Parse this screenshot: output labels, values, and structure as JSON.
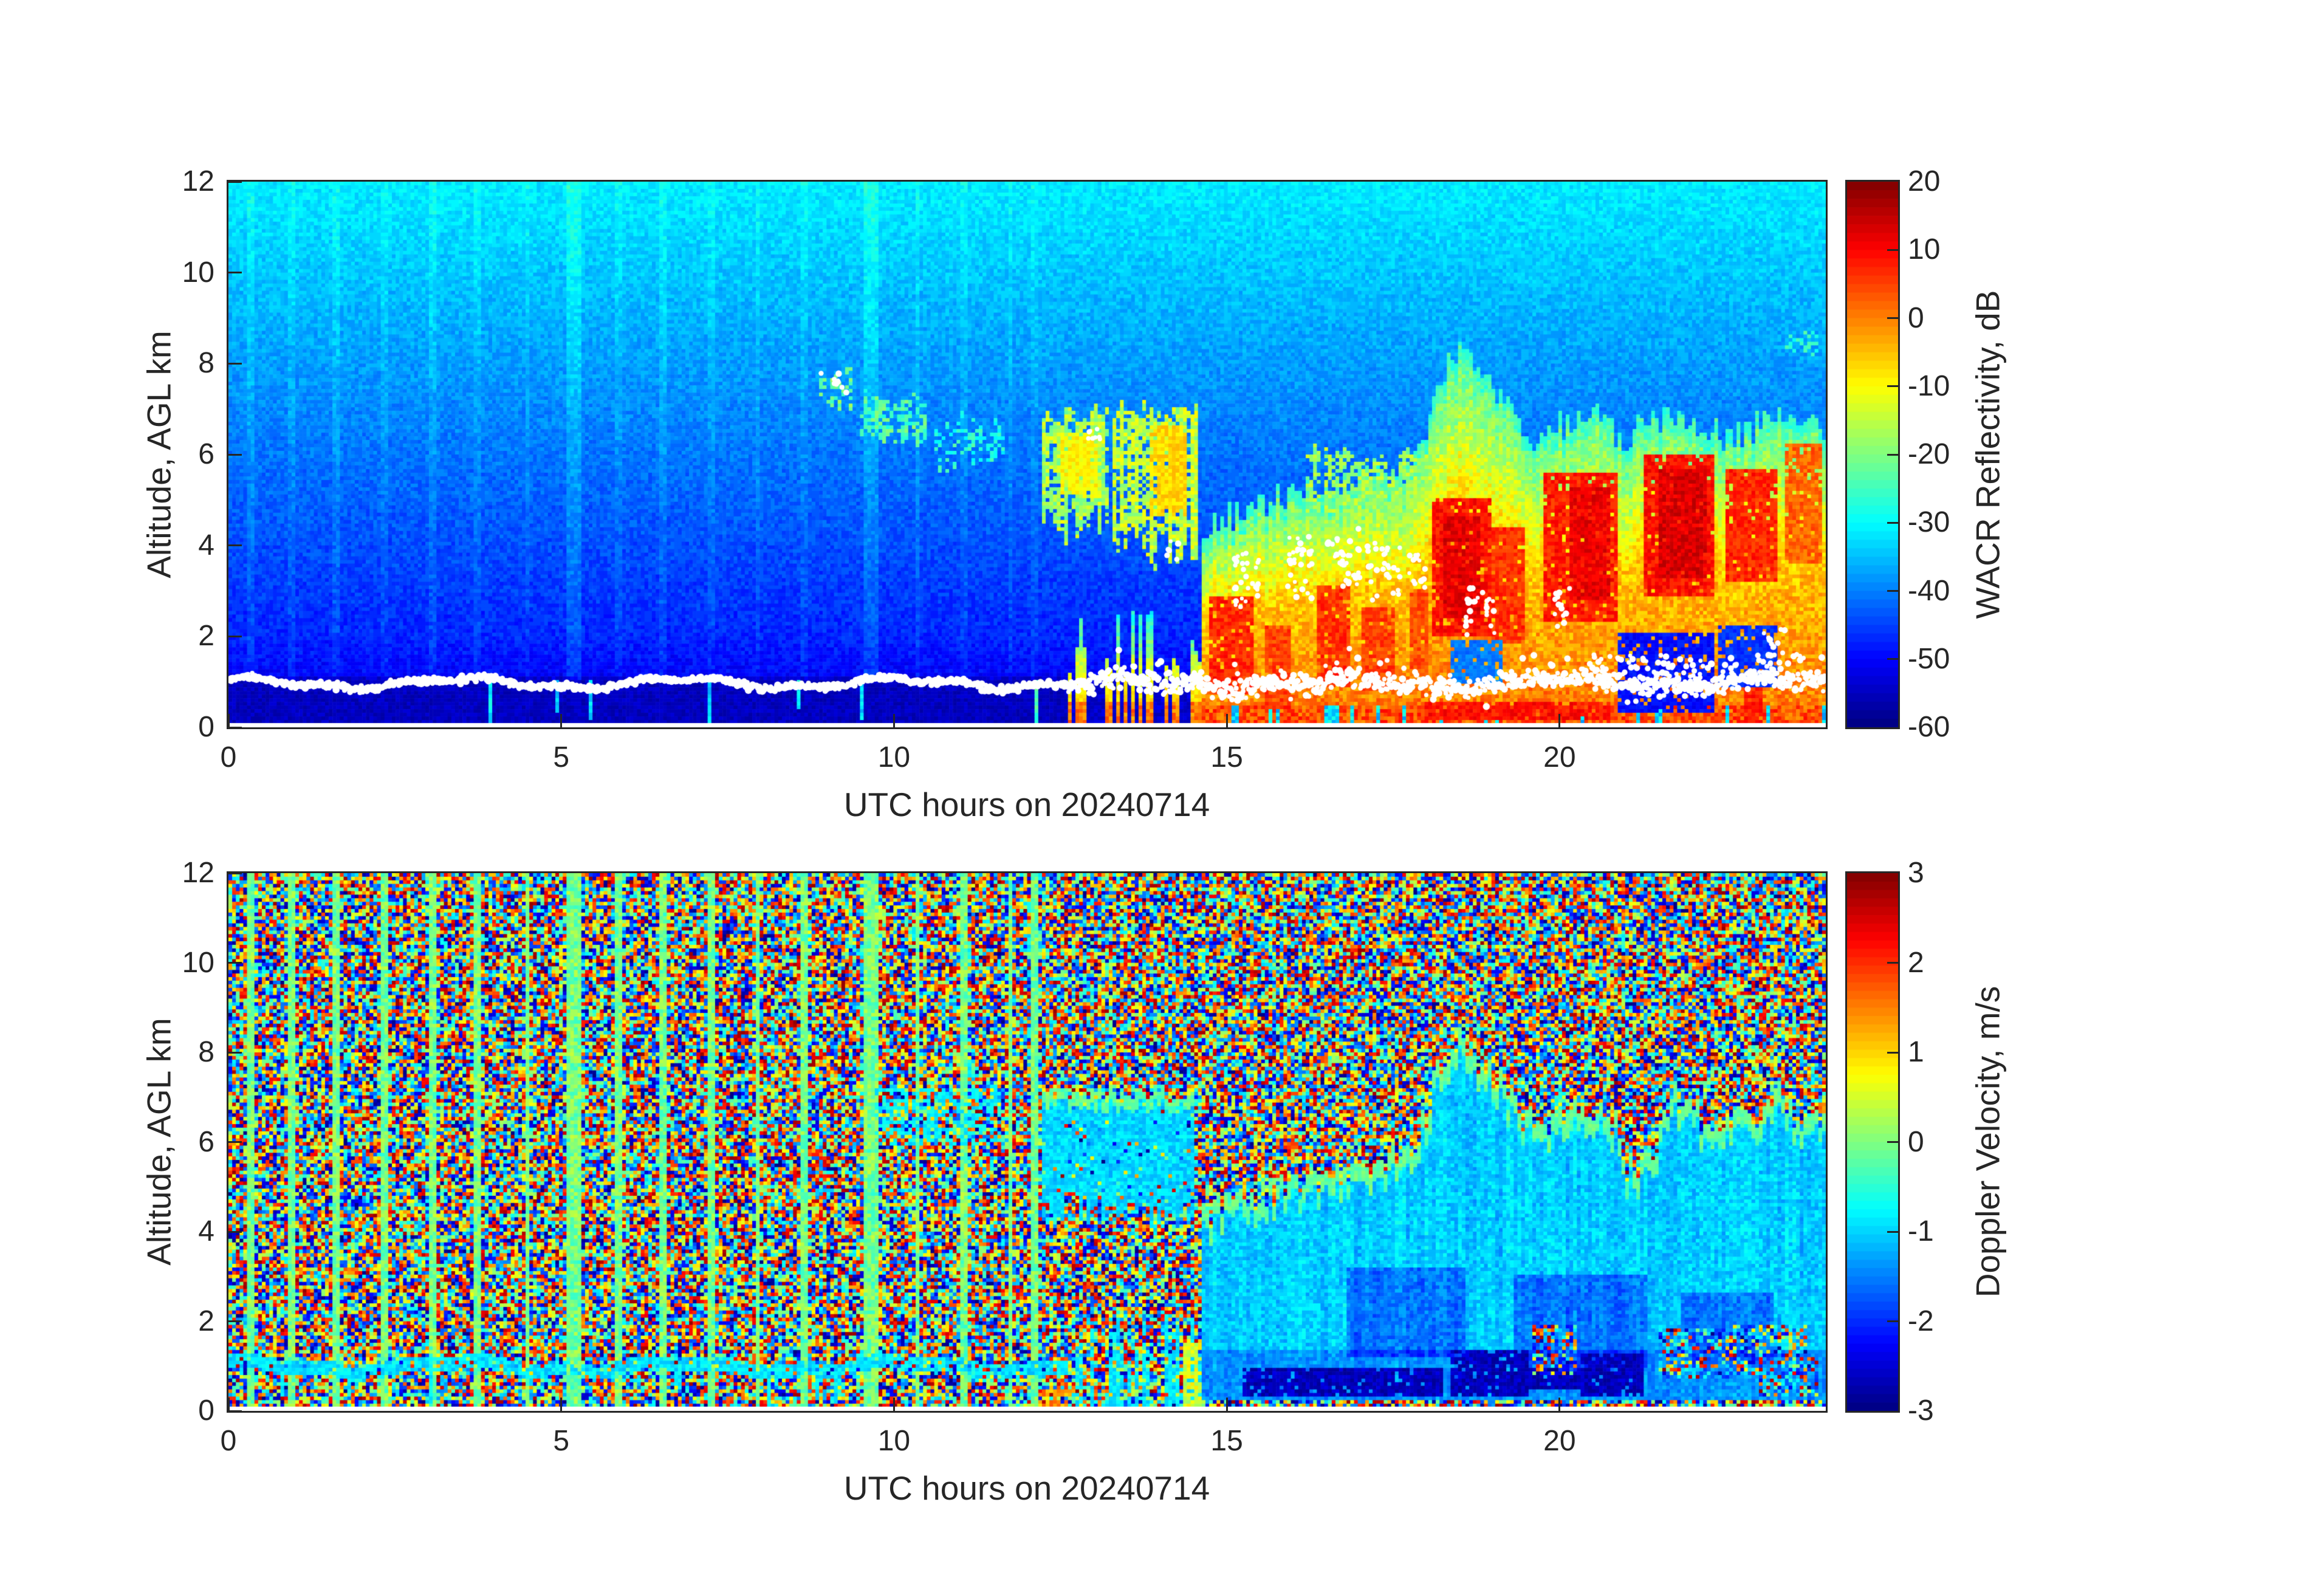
{
  "figure": {
    "background": "#ffffff",
    "frame_color": "#262626",
    "text_color": "#262626"
  },
  "chart_data": [
    {
      "type": "heatmap",
      "panel": "top",
      "description": "W-band ARM Cloud Radar reflectivity time-height plot for 20240714; cyan/blue clear-air noise aloft, white liquid-cloud-base dots near 1 km, cirrus wisps 6.5-8 km from 9-12 UTC, virga 5-7 km from 12.3-14.5 UTC, deep precipitating cloud system with orange/red cores from 14.6-24 UTC reaching up to 8 km",
      "xlabel": "UTC hours on 20240714",
      "ylabel": "Altitude, AGL km",
      "x_range": [
        0,
        24
      ],
      "y_range": [
        0,
        12
      ],
      "x_ticks": [
        0,
        5,
        10,
        15,
        20
      ],
      "y_ticks": [
        0,
        2,
        4,
        6,
        8,
        10,
        12
      ],
      "grid": false,
      "colormap": "jet",
      "colorbar": {
        "label": "WACR Reflectivity, dB",
        "range": [
          -60,
          20
        ],
        "ticks": [
          20,
          10,
          0,
          -10,
          -20,
          -30,
          -40,
          -50,
          -60
        ]
      },
      "background": {
        "noise_top_db": -30.8,
        "lapse_db_per_km": 1.62,
        "low_db": -53.5,
        "sub_band_db": -55,
        "noise_amp_db": 5.2
      },
      "stripes": [
        [
          0.32,
          0.05,
          2.5
        ],
        [
          0.95,
          0.04,
          2
        ],
        [
          1.62,
          0.05,
          2.5
        ],
        [
          2.35,
          0.04,
          2
        ],
        [
          3.05,
          0.05,
          2.5
        ],
        [
          3.75,
          0.04,
          2
        ],
        [
          4.5,
          0.04,
          2
        ],
        [
          5.18,
          0.12,
          4
        ],
        [
          5.85,
          0.04,
          2
        ],
        [
          6.55,
          0.05,
          2.5
        ],
        [
          7.25,
          0.04,
          2
        ],
        [
          7.95,
          0.05,
          2
        ],
        [
          8.65,
          0.04,
          2
        ],
        [
          9.65,
          0.1,
          4
        ],
        [
          10.35,
          0.05,
          2.5
        ],
        [
          11.05,
          0.04,
          2
        ],
        [
          11.75,
          0.04,
          2
        ],
        [
          12.12,
          0.04,
          2
        ]
      ],
      "features": {
        "patches": [
          {
            "t0": 8.85,
            "t1": 9.35,
            "zb": 7.25,
            "zt": 7.95,
            "db": -21,
            "amp": 5,
            "fill": 0.5,
            "topJit": 0.3,
            "botJit": 0.3
          },
          {
            "t0": 9.5,
            "t1": 10.5,
            "zb": 6.55,
            "zt": 7.45,
            "db": -23,
            "amp": 5,
            "fill": 0.55,
            "topJit": 0.4,
            "botJit": 0.4
          },
          {
            "t0": 10.6,
            "t1": 11.65,
            "zb": 6.0,
            "zt": 6.95,
            "db": -27,
            "amp": 4,
            "fill": 0.35,
            "topJit": 0.4,
            "botJit": 0.4
          },
          {
            "t0": 12.25,
            "t1": 13.2,
            "zb": 4.95,
            "zt": 7.1,
            "db": -16,
            "amp": 6,
            "fill": 0.88,
            "topJit": 0.45,
            "botJit": 1.0
          },
          {
            "t0": 12.5,
            "t1": 13.05,
            "zb": 5.2,
            "zt": 6.6,
            "db": -9,
            "amp": 3,
            "fill": 0.95,
            "topJit": 0.2,
            "botJit": 0.3
          },
          {
            "t0": 13.3,
            "t1": 14.55,
            "zb": 4.5,
            "zt": 7.25,
            "db": -14,
            "amp": 6,
            "fill": 0.9,
            "topJit": 0.5,
            "botJit": 1.1
          },
          {
            "t0": 13.85,
            "t1": 14.4,
            "zb": 4.9,
            "zt": 6.7,
            "db": -6,
            "amp": 3,
            "fill": 0.95,
            "topJit": 0.25,
            "botJit": 0.3
          },
          {
            "t0": 16.2,
            "t1": 18.0,
            "zb": 4.9,
            "zt": 6.3,
            "db": -17,
            "amp": 5,
            "fill": 0.5,
            "topJit": 0.6,
            "botJit": 0.2
          },
          {
            "t0": 23.4,
            "t1": 23.95,
            "zb": 8.3,
            "zt": 8.8,
            "db": -26,
            "amp": 3,
            "fill": 0.3,
            "topJit": 0.3,
            "botJit": 0.2
          }
        ],
        "drizzle": {
          "t0": 12.5,
          "t1": 14.65,
          "ztop": 2.6,
          "col_prob": 0.55
        },
        "storm": {
          "t0": 14.6,
          "t1": 24,
          "top_curve": [
            [
              14.6,
              4.3
            ],
            [
              15.3,
              4.8
            ],
            [
              16.2,
              5.2
            ],
            [
              17.0,
              5.4
            ],
            [
              17.7,
              5.7
            ],
            [
              17.95,
              6.4
            ],
            [
              18.2,
              7.8
            ],
            [
              18.5,
              8.25
            ],
            [
              18.9,
              7.6
            ],
            [
              19.3,
              7.0
            ],
            [
              19.6,
              6.4
            ],
            [
              20.0,
              6.6
            ],
            [
              20.5,
              6.9
            ],
            [
              20.9,
              6.4
            ],
            [
              21.3,
              6.6
            ],
            [
              21.7,
              6.95
            ],
            [
              22.1,
              6.6
            ],
            [
              22.5,
              6.4
            ],
            [
              22.9,
              6.6
            ],
            [
              23.3,
              6.9
            ],
            [
              23.7,
              6.6
            ],
            [
              24,
              6.45
            ]
          ]
        },
        "cores": [
          [
            14.75,
            15.4,
            0.7,
            2.9,
            8
          ],
          [
            15.55,
            15.95,
            0.4,
            2.2,
            6
          ],
          [
            16.35,
            16.85,
            0.9,
            3.1,
            7
          ],
          [
            17.05,
            17.55,
            0.8,
            2.6,
            6
          ],
          [
            17.75,
            18.0,
            1.2,
            3.0,
            5
          ],
          [
            18.1,
            19.0,
            2.0,
            5.0,
            10
          ],
          [
            18.25,
            18.8,
            2.4,
            4.6,
            13
          ],
          [
            19.0,
            19.5,
            1.8,
            4.4,
            7
          ],
          [
            19.75,
            20.9,
            2.3,
            5.6,
            9
          ],
          [
            20.15,
            20.75,
            2.8,
            5.3,
            12
          ],
          [
            21.25,
            22.3,
            2.9,
            6.0,
            10
          ],
          [
            21.5,
            22.2,
            3.3,
            5.7,
            14
          ],
          [
            22.5,
            23.25,
            3.2,
            5.7,
            8
          ],
          [
            23.4,
            23.95,
            3.6,
            6.2,
            3
          ],
          [
            18.0,
            20.75,
            0.15,
            0.55,
            10
          ],
          [
            22.8,
            23.05,
            0.1,
            1.1,
            9
          ]
        ],
        "attenuation_patches": [
          [
            20.85,
            22.35,
            0.35,
            2.1,
            -49
          ],
          [
            22.4,
            23.3,
            0.9,
            2.25,
            -46
          ],
          [
            18.35,
            19.15,
            1.0,
            1.9,
            -40
          ]
        ],
        "white_band": {
          "z_center": 0.97,
          "wave_amp": 0.1,
          "spread": 0.06,
          "spread_after": 0.17,
          "change_t": 12.62
        },
        "white_clusters": [
          [
            15.1,
            15.5,
            2.6,
            3.9,
            28
          ],
          [
            15.9,
            16.3,
            2.8,
            4.2,
            30
          ],
          [
            16.5,
            17.0,
            3.0,
            4.4,
            34
          ],
          [
            17.1,
            17.6,
            2.8,
            4.1,
            30
          ],
          [
            17.7,
            18.0,
            3.0,
            3.8,
            16
          ],
          [
            18.55,
            19.05,
            2.0,
            3.3,
            26
          ],
          [
            19.9,
            20.15,
            2.2,
            3.1,
            14
          ],
          [
            12.92,
            13.12,
            6.3,
            6.6,
            8
          ],
          [
            8.9,
            9.3,
            7.35,
            7.8,
            10
          ],
          [
            23.05,
            23.45,
            1.4,
            2.2,
            12
          ],
          [
            14.05,
            14.3,
            3.6,
            4.1,
            6
          ],
          [
            20.5,
            21.6,
            0.95,
            1.6,
            40
          ],
          [
            21.6,
            22.6,
            0.9,
            1.5,
            30
          ],
          [
            22.6,
            23.9,
            0.9,
            1.6,
            30
          ]
        ]
      }
    },
    {
      "type": "heatmap",
      "panel": "bottom",
      "description": "WACR mean Doppler velocity time-height plot for 20240714; full-range folded noise speckle in clear air, light-green calibration stripes, coherent cyan (about -1 m/s) fall velocities inside cloud after 12.3 UTC, dark-blue downdraft/fall-speed band (-2.5 to -3 m/s) near 0.5-1.3 km between 15-21.3 UTC",
      "xlabel": "UTC hours on 20240714",
      "ylabel": "Altitude, AGL km",
      "x_range": [
        0,
        24
      ],
      "y_range": [
        0,
        12
      ],
      "x_ticks": [
        0,
        5,
        10,
        15,
        20
      ],
      "y_ticks": [
        0,
        2,
        4,
        6,
        8,
        10,
        12
      ],
      "grid": false,
      "colormap": "jet",
      "colorbar": {
        "label": "Doppler Velocity, m/s",
        "range": [
          -3,
          3
        ],
        "ticks": [
          3,
          2,
          1,
          0,
          -1,
          -2,
          -3
        ]
      },
      "stripes": [
        [
          0.32,
          0.05,
          2.5
        ],
        [
          0.95,
          0.04,
          2
        ],
        [
          1.62,
          0.05,
          2.5
        ],
        [
          2.35,
          0.04,
          2
        ],
        [
          3.05,
          0.05,
          2.5
        ],
        [
          3.75,
          0.04,
          2
        ],
        [
          4.5,
          0.04,
          2
        ],
        [
          5.18,
          0.12,
          4
        ],
        [
          5.85,
          0.04,
          2
        ],
        [
          6.55,
          0.05,
          2.5
        ],
        [
          7.25,
          0.04,
          2
        ],
        [
          7.95,
          0.05,
          2
        ],
        [
          8.65,
          0.04,
          2
        ],
        [
          9.65,
          0.1,
          4
        ],
        [
          10.35,
          0.05,
          2.5
        ],
        [
          11.05,
          0.04,
          2
        ],
        [
          11.75,
          0.04,
          2
        ],
        [
          12.12,
          0.04,
          2
        ]
      ],
      "features": {
        "band": {
          "z_center": 0.98,
          "wave_amp": 0.1,
          "half_width": 0.16,
          "t_end": 12.62,
          "v": -0.85
        },
        "cirrus": {
          "t0": 9.7,
          "t1": 11.6,
          "zb": 5.9,
          "zt": 7.2,
          "fill": 0.4,
          "v": -0.75
        },
        "virga": {
          "t0": 12.25,
          "t1": 14.5,
          "zb": 5.0,
          "zt": 7.3,
          "v": -0.95,
          "botJit": 0.9,
          "topJit": 0.4
        },
        "drizzle": {
          "t0": 12.5,
          "t1": 14.65,
          "ztop": 2.6,
          "col_prob": 0.5
        },
        "storm": {
          "t0": 14.6,
          "t1": 24,
          "v_base": -1.0,
          "v_low": -1.35,
          "fringe_v": -0.12,
          "top_curve": [
            [
              14.6,
              4.3
            ],
            [
              15.3,
              4.8
            ],
            [
              16.2,
              5.2
            ],
            [
              17.0,
              5.4
            ],
            [
              17.7,
              5.7
            ],
            [
              17.95,
              6.4
            ],
            [
              18.2,
              7.8
            ],
            [
              18.5,
              8.25
            ],
            [
              18.9,
              7.6
            ],
            [
              19.3,
              7.0
            ],
            [
              19.6,
              6.4
            ],
            [
              20.0,
              6.6
            ],
            [
              20.5,
              6.9
            ],
            [
              20.9,
              6.4
            ],
            [
              21.3,
              6.6
            ],
            [
              21.7,
              6.95
            ],
            [
              22.1,
              6.6
            ],
            [
              22.5,
              6.4
            ],
            [
              22.9,
              6.6
            ],
            [
              23.3,
              6.9
            ],
            [
              23.7,
              6.6
            ],
            [
              24,
              6.45
            ]
          ]
        },
        "cool_patches": [
          [
            16.8,
            18.6,
            1.2,
            3.2
          ],
          [
            19.3,
            21.3,
            1.0,
            3.0
          ],
          [
            21.8,
            23.2,
            1.1,
            2.6
          ]
        ],
        "downdraft_patches": [
          [
            15.25,
            18.25,
            0.3,
            0.95
          ],
          [
            18.35,
            19.55,
            0.3,
            1.35
          ],
          [
            20.3,
            21.25,
            0.3,
            1.3
          ],
          [
            19.55,
            20.3,
            0.45,
            0.95
          ]
        ],
        "speckle_patches": [
          [
            19.6,
            20.25,
            0.8,
            1.9
          ],
          [
            21.5,
            22.6,
            0.7,
            1.8
          ],
          [
            22.6,
            23.7,
            0.8,
            1.9
          ],
          [
            23.0,
            23.9,
            0.3,
            1.2
          ]
        ],
        "warm_spots": [
          [
            12.3,
            12.6,
            0,
            0.45,
            1.4
          ],
          [
            14.35,
            14.65,
            0,
            1.5,
            0.6
          ]
        ]
      }
    }
  ]
}
